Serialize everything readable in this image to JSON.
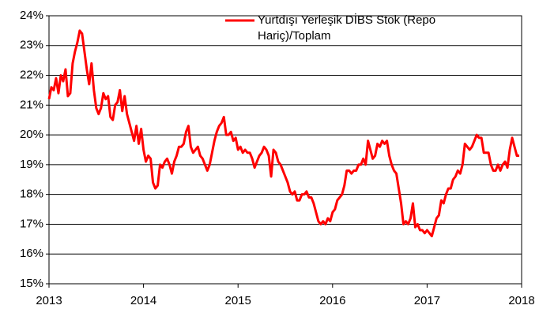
{
  "chart_data": {
    "type": "line",
    "x": [
      2013,
      2013.025,
      2013.05,
      2013.075,
      2013.1,
      2013.125,
      2013.15,
      2013.175,
      2013.2,
      2013.225,
      2013.25,
      2013.275,
      2013.3,
      2013.325,
      2013.35,
      2013.375,
      2013.4,
      2013.425,
      2013.45,
      2013.475,
      2013.5,
      2013.525,
      2013.55,
      2013.575,
      2013.6,
      2013.625,
      2013.65,
      2013.675,
      2013.7,
      2013.725,
      2013.75,
      2013.775,
      2013.8,
      2013.825,
      2013.85,
      2013.875,
      2013.9,
      2013.925,
      2013.95,
      2013.975,
      2014,
      2014.025,
      2014.05,
      2014.075,
      2014.1,
      2014.125,
      2014.15,
      2014.175,
      2014.2,
      2014.225,
      2014.25,
      2014.275,
      2014.3,
      2014.325,
      2014.35,
      2014.375,
      2014.4,
      2014.425,
      2014.45,
      2014.475,
      2014.5,
      2014.525,
      2014.55,
      2014.575,
      2014.6,
      2014.625,
      2014.65,
      2014.675,
      2014.7,
      2014.725,
      2014.75,
      2014.775,
      2014.8,
      2014.825,
      2014.85,
      2014.875,
      2014.9,
      2014.925,
      2014.95,
      2014.975,
      2015,
      2015.025,
      2015.05,
      2015.075,
      2015.1,
      2015.125,
      2015.15,
      2015.175,
      2015.2,
      2015.225,
      2015.25,
      2015.275,
      2015.3,
      2015.325,
      2015.35,
      2015.375,
      2015.4,
      2015.425,
      2015.45,
      2015.475,
      2015.5,
      2015.525,
      2015.55,
      2015.575,
      2015.6,
      2015.625,
      2015.65,
      2015.675,
      2015.7,
      2015.725,
      2015.75,
      2015.775,
      2015.8,
      2015.825,
      2015.85,
      2015.875,
      2015.9,
      2015.925,
      2015.95,
      2015.975,
      2016,
      2016.025,
      2016.05,
      2016.075,
      2016.1,
      2016.125,
      2016.15,
      2016.175,
      2016.2,
      2016.225,
      2016.25,
      2016.275,
      2016.3,
      2016.325,
      2016.35,
      2016.375,
      2016.4,
      2016.425,
      2016.45,
      2016.475,
      2016.5,
      2016.525,
      2016.55,
      2016.575,
      2016.6,
      2016.625,
      2016.65,
      2016.675,
      2016.7,
      2016.725,
      2016.75,
      2016.775,
      2016.8,
      2016.825,
      2016.85,
      2016.875,
      2016.9,
      2016.925,
      2016.95,
      2016.975,
      2017,
      2017.025,
      2017.05,
      2017.075,
      2017.1,
      2017.125,
      2017.15,
      2017.175,
      2017.2,
      2017.225,
      2017.25,
      2017.275,
      2017.3,
      2017.325,
      2017.35,
      2017.375,
      2017.4,
      2017.425,
      2017.45,
      2017.475,
      2017.5,
      2017.525,
      2017.55,
      2017.575,
      2017.6,
      2017.625,
      2017.65,
      2017.675,
      2017.7,
      2017.725,
      2017.75,
      2017.775,
      2017.8,
      2017.825,
      2017.85,
      2017.875,
      2017.9,
      2017.925,
      2017.95,
      2017.975
    ],
    "series": [
      {
        "name": "Yurtdışı Yerleşik DİBS Stok (Repo Hariç)/Toplam",
        "color": "#ff0000",
        "values": [
          21.2,
          21.6,
          21.5,
          21.9,
          21.4,
          22.0,
          21.8,
          22.2,
          21.3,
          21.4,
          22.4,
          22.8,
          23.1,
          23.5,
          23.4,
          22.8,
          22.2,
          21.7,
          22.4,
          21.5,
          20.9,
          20.7,
          20.9,
          21.4,
          21.2,
          21.3,
          20.6,
          20.5,
          21.0,
          21.1,
          21.5,
          20.8,
          21.3,
          20.7,
          20.4,
          20.1,
          19.8,
          20.3,
          19.7,
          20.2,
          19.5,
          19.1,
          19.3,
          19.2,
          18.4,
          18.2,
          18.3,
          19.0,
          18.9,
          19.1,
          19.2,
          19.0,
          18.7,
          19.1,
          19.3,
          19.6,
          19.6,
          19.7,
          20.1,
          20.3,
          19.6,
          19.4,
          19.5,
          19.6,
          19.3,
          19.2,
          19.0,
          18.8,
          19.0,
          19.4,
          19.8,
          20.1,
          20.3,
          20.4,
          20.6,
          20.0,
          20.0,
          20.1,
          19.8,
          19.9,
          19.5,
          19.6,
          19.4,
          19.5,
          19.4,
          19.4,
          19.2,
          18.9,
          19.1,
          19.3,
          19.4,
          19.6,
          19.5,
          19.3,
          18.6,
          19.5,
          19.4,
          19.1,
          19.0,
          18.8,
          18.6,
          18.4,
          18.1,
          18.0,
          18.1,
          17.8,
          17.8,
          18.0,
          18.0,
          18.1,
          17.9,
          17.9,
          17.7,
          17.4,
          17.1,
          17.0,
          17.1,
          17.0,
          17.2,
          17.1,
          17.4,
          17.5,
          17.8,
          17.9,
          18.0,
          18.3,
          18.8,
          18.8,
          18.7,
          18.8,
          18.8,
          19.0,
          19.0,
          19.2,
          19.0,
          19.8,
          19.5,
          19.2,
          19.3,
          19.7,
          19.6,
          19.8,
          19.7,
          19.8,
          19.3,
          19.0,
          18.8,
          18.7,
          18.2,
          17.7,
          17.0,
          17.1,
          17.0,
          17.2,
          17.7,
          16.9,
          17.0,
          16.8,
          16.8,
          16.7,
          16.8,
          16.7,
          16.6,
          16.9,
          17.2,
          17.3,
          17.8,
          17.7,
          18.0,
          18.2,
          18.2,
          18.5,
          18.6,
          18.8,
          18.7,
          19.0,
          19.7,
          19.6,
          19.5,
          19.6,
          19.8,
          20.0,
          19.9,
          19.9,
          19.4,
          19.4,
          19.4,
          19.0,
          18.8,
          18.8,
          19.0,
          18.8,
          19.0,
          19.1,
          18.9,
          19.5,
          19.9,
          19.6,
          19.3,
          19.3
        ]
      }
    ],
    "xlim": [
      2013,
      2018
    ],
    "xticks": [
      2013,
      2014,
      2015,
      2016,
      2017,
      2018
    ],
    "ylim": [
      15,
      24
    ],
    "yticks": [
      {
        "value": 15,
        "label": "15%"
      },
      {
        "value": 16,
        "label": "16%"
      },
      {
        "value": 17,
        "label": "17%"
      },
      {
        "value": 18,
        "label": "18%"
      },
      {
        "value": 19,
        "label": "19%"
      },
      {
        "value": 20,
        "label": "20%"
      },
      {
        "value": 21,
        "label": "21%"
      },
      {
        "value": 22,
        "label": "22%"
      },
      {
        "value": 23,
        "label": "23%"
      },
      {
        "value": 24,
        "label": "24%"
      }
    ],
    "grid": true
  }
}
